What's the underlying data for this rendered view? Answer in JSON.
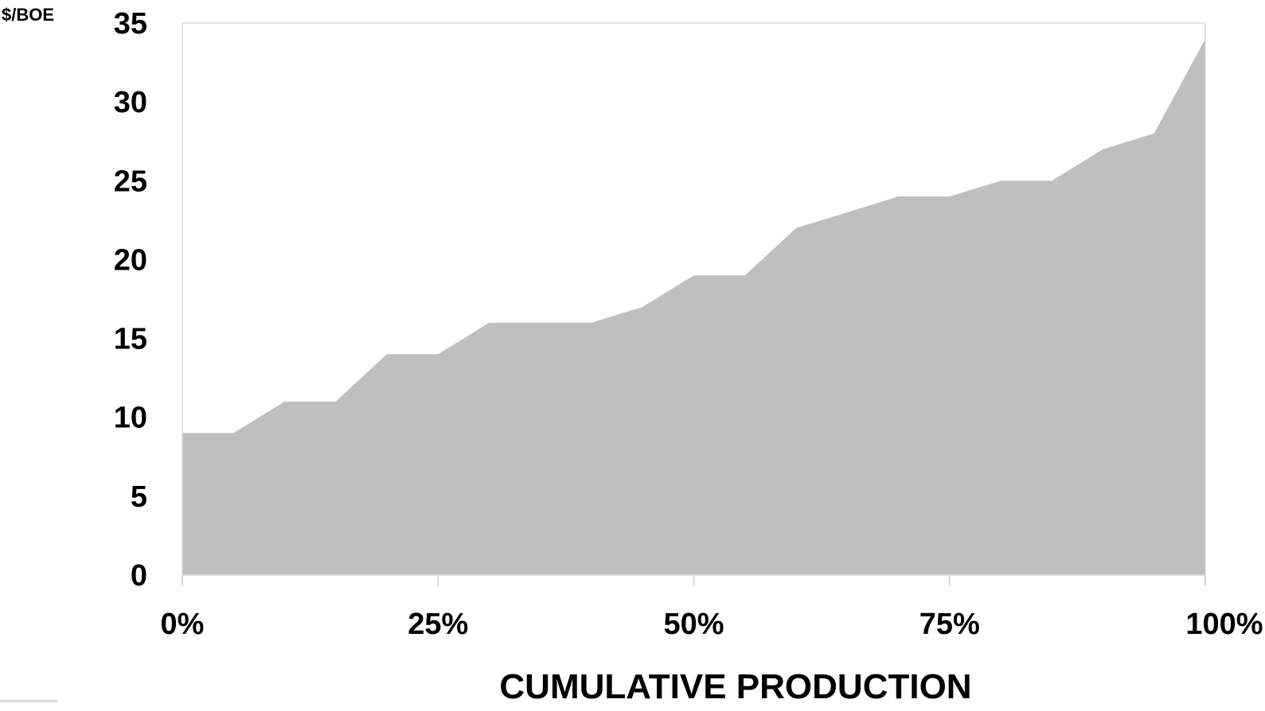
{
  "chart_data": {
    "type": "area",
    "title": "",
    "ylabel": "$/BOE",
    "xlabel": "CUMULATIVE PRODUCTION",
    "ylim": [
      0,
      35
    ],
    "xlim": [
      0,
      100
    ],
    "yticks": [
      0,
      5,
      10,
      15,
      20,
      25,
      30,
      35
    ],
    "xticks": [
      {
        "value": 0,
        "label": "0%"
      },
      {
        "value": 25,
        "label": "25%"
      },
      {
        "value": 50,
        "label": "50%"
      },
      {
        "value": 75,
        "label": "75%"
      },
      {
        "value": 100,
        "label": "100%"
      }
    ],
    "grid": false,
    "legend": "none",
    "fill_color": "#bfbfbf",
    "axis_color": "#d9d9d9",
    "series": [
      {
        "x": [
          0,
          5,
          10,
          15,
          20,
          25,
          30,
          35,
          40,
          45,
          50,
          55,
          60,
          65,
          70,
          75,
          80,
          85,
          90,
          95,
          100
        ],
        "values": [
          9,
          9,
          11,
          11,
          14,
          14,
          16,
          16,
          16,
          17,
          19,
          19,
          22,
          23,
          24,
          24,
          25,
          25,
          27,
          28,
          34
        ]
      }
    ]
  }
}
